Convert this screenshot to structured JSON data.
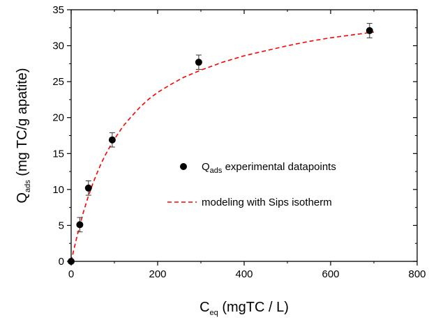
{
  "chart_data": {
    "type": "scatter",
    "xlabel": {
      "main": "C",
      "sub": "eq",
      "rest": " (mgTC / L)"
    },
    "ylabel": {
      "main": "Q",
      "sub": "ads",
      "rest": " (mg TC/g apatite)"
    },
    "xlim": [
      0,
      800
    ],
    "ylim": [
      0,
      35
    ],
    "xticks": [
      0,
      200,
      400,
      600,
      800
    ],
    "yticks": [
      0,
      5,
      10,
      15,
      20,
      25,
      30,
      35
    ],
    "grid": false,
    "legend_position": "center-right",
    "series": [
      {
        "kind": "points",
        "legend": {
          "main": "Q",
          "sub": "ads",
          "rest": " experimental datapoints"
        },
        "color": "#000000",
        "x": [
          0,
          20,
          40,
          95,
          295,
          690
        ],
        "y": [
          0,
          5.1,
          10.2,
          16.9,
          27.7,
          32.1
        ],
        "yerr": [
          0,
          1.0,
          1.0,
          1.0,
          1.0,
          1.0
        ]
      },
      {
        "kind": "dashed-line",
        "legend": {
          "main": "modeling with Sips isotherm",
          "sub": "",
          "rest": ""
        },
        "color": "#ff0000",
        "x": [
          0,
          10,
          20,
          30,
          40,
          50,
          60,
          70,
          80,
          90,
          100,
          120,
          140,
          160,
          180,
          200,
          230,
          260,
          300,
          350,
          400,
          450,
          500,
          550,
          600,
          650,
          700
        ],
        "y": [
          0,
          2.6,
          5.0,
          7.2,
          9.1,
          10.8,
          12.3,
          13.7,
          14.9,
          16.0,
          17.0,
          18.8,
          20.2,
          21.5,
          22.6,
          23.5,
          24.6,
          25.6,
          26.6,
          27.7,
          28.6,
          29.3,
          30.0,
          30.6,
          31.1,
          31.5,
          31.9
        ]
      }
    ]
  }
}
